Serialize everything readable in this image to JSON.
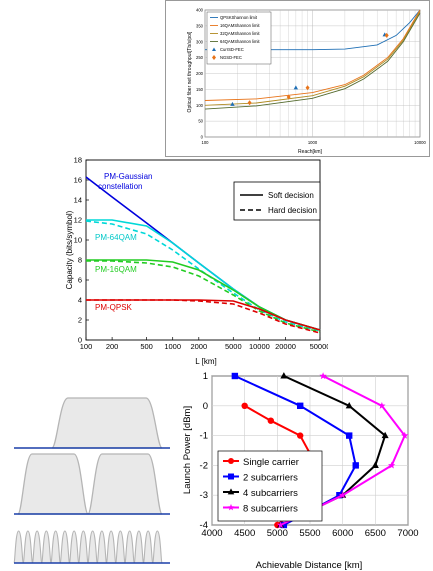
{
  "chart_data": [
    {
      "type": "line",
      "xlabel": "Reach[km]",
      "ylabel": "Optical fiber net throughput[Tb/s/pol]",
      "x_scale": "log",
      "xlim": [
        100,
        10000
      ],
      "ylim": [
        0,
        400
      ],
      "x_ticks": [
        "100",
        "1000",
        "10000"
      ],
      "y_ticks": [
        "0",
        "50",
        "100",
        "150",
        "200",
        "250",
        "300",
        "350",
        "400"
      ],
      "legend_position": "top-left",
      "grid": true,
      "series": [
        {
          "name": "QPSKShannon limit",
          "color": "#1f6fb5",
          "x": [
            100,
            500,
            1000,
            2000,
            4000,
            6000,
            8000,
            10000
          ],
          "y": [
            275,
            275,
            275,
            277,
            290,
            320,
            360,
            400
          ]
        },
        {
          "name": "16QAMShannon limit",
          "color": "#e8741a",
          "x": [
            100,
            300,
            1000,
            2000,
            3000,
            5000,
            7000,
            10000
          ],
          "y": [
            115,
            120,
            140,
            165,
            195,
            250,
            310,
            400
          ]
        },
        {
          "name": "32QAMShannon limit",
          "color": "#b08a20",
          "x": [
            100,
            300,
            1000,
            2000,
            3000,
            5000,
            7000,
            10000
          ],
          "y": [
            100,
            107,
            130,
            160,
            190,
            245,
            305,
            395
          ]
        },
        {
          "name": "64QAMShannon limit",
          "color": "#556b2f",
          "x": [
            100,
            300,
            1000,
            2000,
            3000,
            5000,
            7000,
            10000
          ],
          "y": [
            88,
            98,
            122,
            152,
            183,
            238,
            300,
            390
          ]
        },
        {
          "name": "CurrSD-FEC",
          "marker": "triangle",
          "color": "#1f6fb5",
          "x": [
            180,
            700,
            4700
          ],
          "y": [
            103,
            155,
            322
          ]
        },
        {
          "name": "NGSD-FEC",
          "marker": "diamond",
          "color": "#e8741a",
          "x": [
            260,
            600,
            900,
            4900
          ],
          "y": [
            108,
            126,
            155,
            320
          ]
        }
      ]
    },
    {
      "type": "line",
      "xlabel": "L [km]",
      "ylabel": "Capacity (bits/symbol)",
      "x_scale": "log",
      "xlim": [
        100,
        50000
      ],
      "ylim": [
        0,
        18
      ],
      "x_ticks": [
        "100",
        "200",
        "500",
        "1000",
        "2000",
        "5000",
        "10000",
        "20000",
        "50000"
      ],
      "y_ticks": [
        "0",
        "2",
        "4",
        "6",
        "8",
        "10",
        "12",
        "14",
        "16",
        "18"
      ],
      "legend": [
        "Soft decision",
        "Hard decision"
      ],
      "legend_position": "top-right",
      "annotations": [
        "PM-Gaussian constellation",
        "PM-64QAM",
        "PM-16QAM",
        "PM-QPSK"
      ],
      "series": [
        {
          "name": "PM-Gaussian constellation",
          "color": "#0000dd",
          "style": "solid",
          "x": [
            100,
            200,
            500,
            1000,
            2000,
            5000,
            10000,
            20000,
            50000
          ],
          "y": [
            16.3,
            14.3,
            11.7,
            9.7,
            7.7,
            5.1,
            3.3,
            2.0,
            1.0
          ]
        },
        {
          "name": "PM-64QAM",
          "color": "#00d8d8",
          "style": "solid",
          "x": [
            100,
            200,
            500,
            1000,
            2000,
            5000,
            10000,
            20000,
            50000
          ],
          "y": [
            12.0,
            12.0,
            11.4,
            9.7,
            7.7,
            5.1,
            3.3,
            2.0,
            1.0
          ]
        },
        {
          "name": "PM-64QAM hard",
          "color": "#00d8d8",
          "style": "dashed",
          "x": [
            100,
            200,
            500,
            1000,
            2000,
            5000,
            10000,
            20000,
            50000
          ],
          "y": [
            11.9,
            11.6,
            10.6,
            9.0,
            7.1,
            4.7,
            3.0,
            1.8,
            0.9
          ]
        },
        {
          "name": "PM-16QAM",
          "color": "#22cc22",
          "style": "solid",
          "x": [
            100,
            200,
            500,
            1000,
            2000,
            5000,
            10000,
            20000,
            50000
          ],
          "y": [
            8.0,
            8.0,
            8.0,
            7.8,
            7.0,
            5.0,
            3.3,
            2.0,
            1.0
          ]
        },
        {
          "name": "PM-16QAM hard",
          "color": "#22cc22",
          "style": "dashed",
          "x": [
            100,
            200,
            500,
            1000,
            2000,
            5000,
            10000,
            20000,
            50000
          ],
          "y": [
            7.9,
            7.9,
            7.7,
            7.3,
            6.4,
            4.5,
            2.9,
            1.7,
            0.8
          ]
        },
        {
          "name": "PM-QPSK",
          "color": "#dd0000",
          "style": "solid",
          "x": [
            100,
            200,
            500,
            1000,
            2000,
            5000,
            10000,
            20000,
            50000
          ],
          "y": [
            4.0,
            4.0,
            4.0,
            4.0,
            4.0,
            3.9,
            3.1,
            2.0,
            1.0
          ]
        },
        {
          "name": "PM-QPSK hard",
          "color": "#dd0000",
          "style": "dashed",
          "x": [
            100,
            200,
            500,
            1000,
            2000,
            5000,
            10000,
            20000,
            50000
          ],
          "y": [
            4.0,
            4.0,
            4.0,
            4.0,
            3.9,
            3.6,
            2.7,
            1.6,
            0.7
          ]
        }
      ]
    },
    {
      "type": "line",
      "xlabel": "Achievable Distance [km]",
      "ylabel": "Launch Power [dBm]",
      "xlim": [
        4000,
        7000
      ],
      "ylim": [
        -4,
        1
      ],
      "x_ticks": [
        "4000",
        "4500",
        "5000",
        "5500",
        "6000",
        "6500",
        "7000"
      ],
      "y_ticks": [
        "-4",
        "-3",
        "-2",
        "-1",
        "0",
        "1"
      ],
      "legend_position": "bottom-left",
      "grid": true,
      "series": [
        {
          "name": "Single carrier",
          "color": "#ff0000",
          "marker": "circle",
          "x": [
            4500,
            4900,
            5350,
            5600,
            5550,
            5000
          ],
          "y": [
            0,
            -0.5,
            -1,
            -2,
            -3,
            -4
          ]
        },
        {
          "name": "2 subcarriers",
          "color": "#0000ff",
          "marker": "square",
          "x": [
            4350,
            5350,
            6100,
            6200,
            5950,
            5100
          ],
          "y": [
            1,
            0,
            -1,
            -2,
            -3,
            -4
          ]
        },
        {
          "name": "4 subcarriers",
          "color": "#000000",
          "marker": "triangle",
          "x": [
            5100,
            6100,
            6650,
            6500,
            6000,
            5050
          ],
          "y": [
            1,
            0,
            -1,
            -2,
            -3,
            -4
          ]
        },
        {
          "name": "8 subcarriers",
          "color": "#ff00ff",
          "marker": "star",
          "x": [
            5700,
            6600,
            6950,
            6750,
            6000,
            5050
          ],
          "y": [
            1,
            0,
            -1,
            -2,
            -3,
            -4
          ]
        }
      ]
    }
  ],
  "spectra": {
    "accent": "#1a3fa8",
    "bands": [
      {
        "name": "single-carrier",
        "carriers": 1
      },
      {
        "name": "two-subcarriers",
        "carriers": 2
      },
      {
        "name": "eight-subcarriers",
        "carriers": 8
      }
    ]
  }
}
